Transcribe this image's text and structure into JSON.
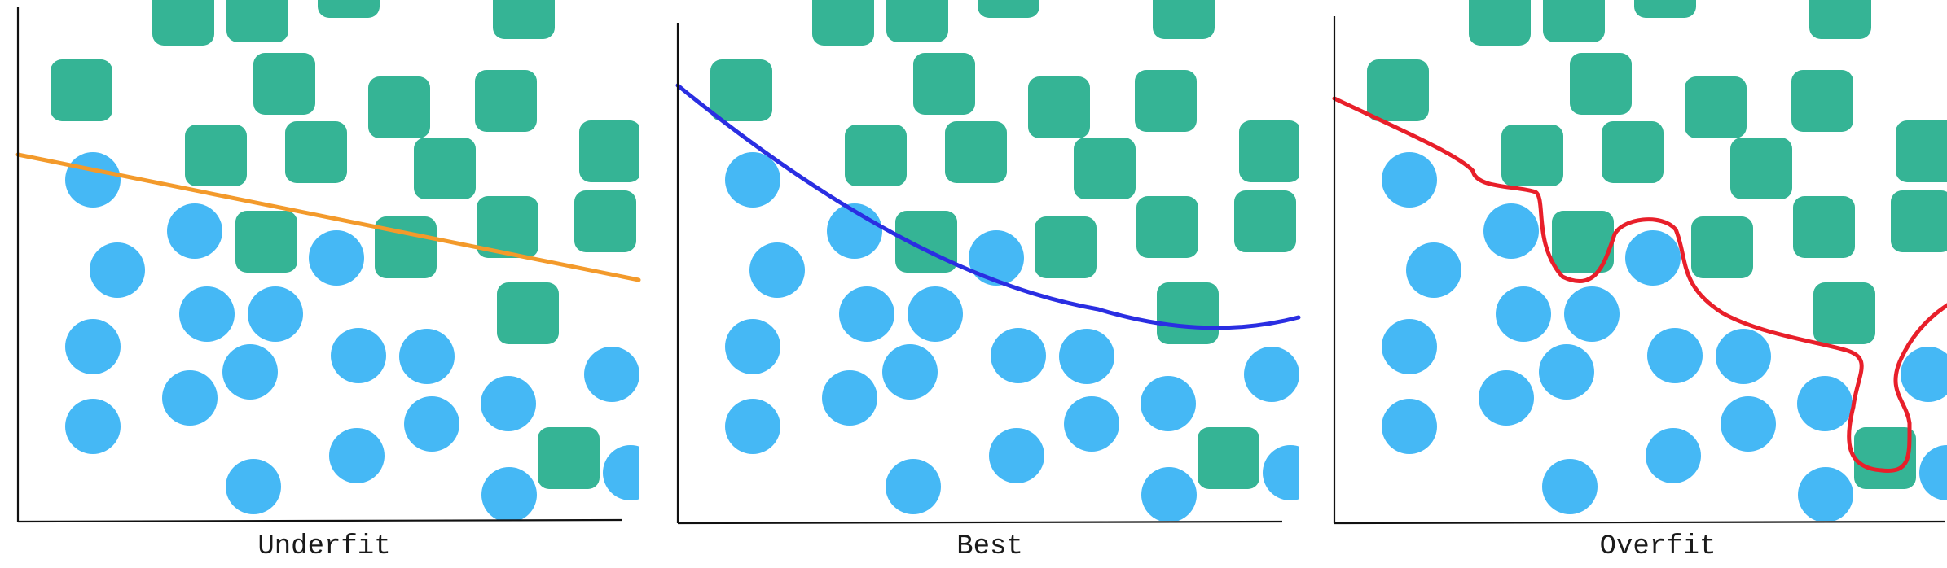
{
  "colors": {
    "circle": "#45b8f5",
    "square": "#35b495",
    "axis": "#111111",
    "underfit_line": "#f39a2b",
    "best_line": "#2a2ee2",
    "overfit_line": "#e81f2a"
  },
  "panels": [
    {
      "id": "underfit",
      "label": "Underfit",
      "shape_icon_circle": "blue-circle",
      "shape_icon_square": "green-rounded-square"
    },
    {
      "id": "best",
      "label": "Best",
      "shape_icon_circle": "blue-circle",
      "shape_icon_square": "green-rounded-square"
    },
    {
      "id": "overfit",
      "label": "Overfit",
      "shape_icon_circle": "blue-circle",
      "shape_icon_square": "green-rounded-square"
    }
  ]
}
